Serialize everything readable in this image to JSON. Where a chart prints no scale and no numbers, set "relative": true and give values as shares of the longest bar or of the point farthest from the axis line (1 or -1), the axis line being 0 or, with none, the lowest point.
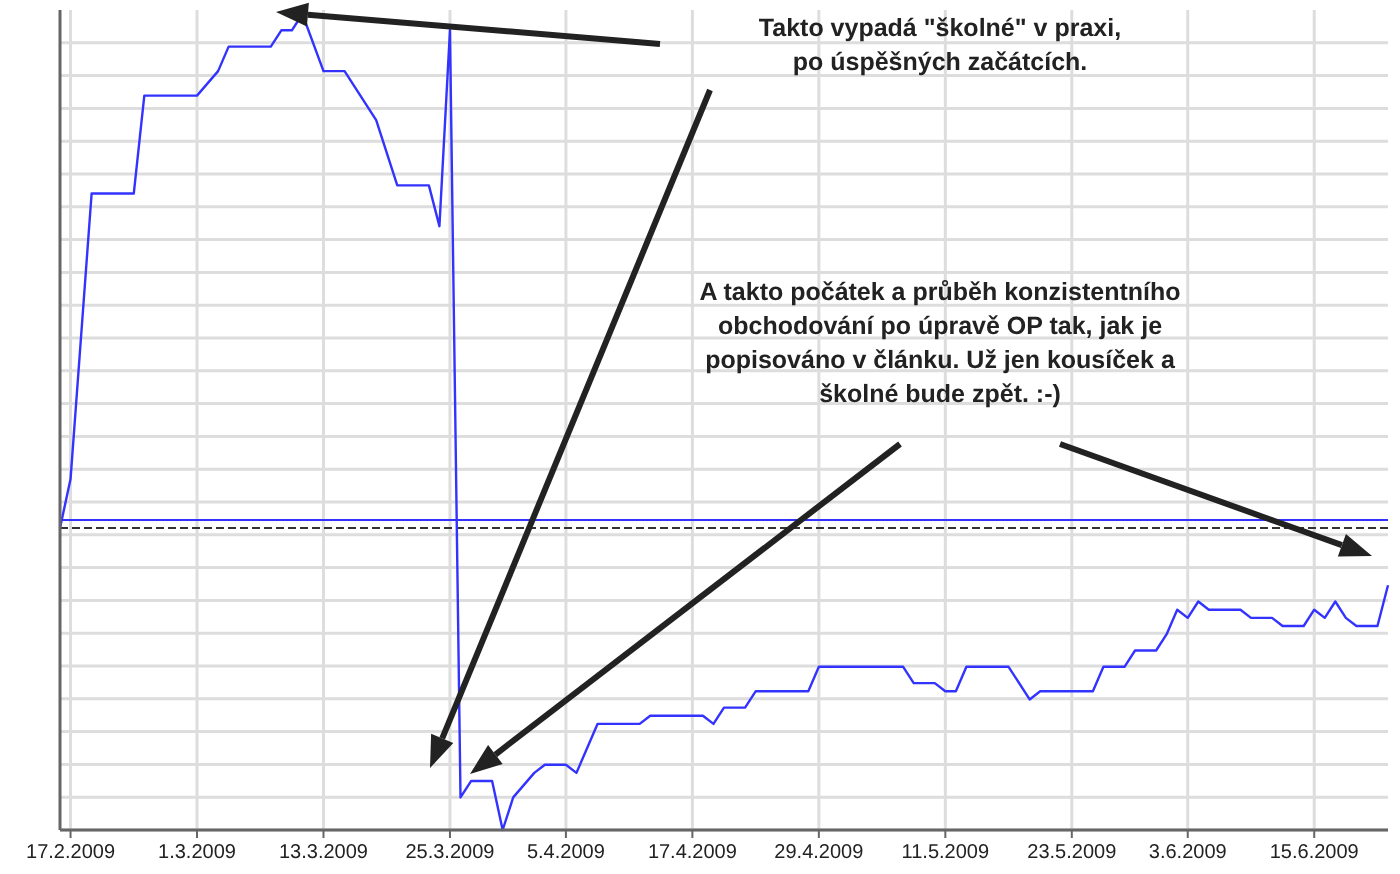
{
  "chart_data": {
    "type": "line",
    "relative": true,
    "grid": true,
    "line_style": "solid",
    "marker": "none",
    "x": [
      "2009-02-16",
      "2009-02-17",
      "2009-02-19",
      "2009-02-23",
      "2009-02-24",
      "2009-02-26",
      "2009-03-01",
      "2009-03-03",
      "2009-03-04",
      "2009-03-05",
      "2009-03-08",
      "2009-03-09",
      "2009-03-10",
      "2009-03-11",
      "2009-03-13",
      "2009-03-15",
      "2009-03-18",
      "2009-03-20",
      "2009-03-22",
      "2009-03-23",
      "2009-03-24",
      "2009-03-25",
      "2009-03-26",
      "2009-03-27",
      "2009-03-29",
      "2009-03-30",
      "2009-03-31",
      "2009-04-02",
      "2009-04-03",
      "2009-04-05",
      "2009-04-06",
      "2009-04-08",
      "2009-04-12",
      "2009-04-13",
      "2009-04-14",
      "2009-04-16",
      "2009-04-18",
      "2009-04-19",
      "2009-04-20",
      "2009-04-22",
      "2009-04-23",
      "2009-04-28",
      "2009-04-29",
      "2009-05-07",
      "2009-05-08",
      "2009-05-10",
      "2009-05-11",
      "2009-05-12",
      "2009-05-13",
      "2009-05-14",
      "2009-05-15",
      "2009-05-17",
      "2009-05-19",
      "2009-05-20",
      "2009-05-21",
      "2009-05-25",
      "2009-05-26",
      "2009-05-28",
      "2009-05-29",
      "2009-05-31",
      "2009-06-01",
      "2009-06-02",
      "2009-06-03",
      "2009-06-04",
      "2009-06-05",
      "2009-06-08",
      "2009-06-09",
      "2009-06-11",
      "2009-06-12",
      "2009-06-14",
      "2009-06-15",
      "2009-06-16",
      "2009-06-17",
      "2009-06-18",
      "2009-06-19",
      "2009-06-21",
      "2009-06-22"
    ],
    "series": [
      {
        "color": "#3333ff",
        "values": [
          0.37,
          0.43,
          0.78,
          0.78,
          0.9,
          0.9,
          0.9,
          0.93,
          0.96,
          0.96,
          0.96,
          0.98,
          0.98,
          1,
          0.93,
          0.93,
          0.87,
          0.79,
          0.79,
          0.79,
          0.74,
          0.98,
          0.04,
          0.06,
          0.06,
          0,
          0.04,
          0.07,
          0.08,
          0.08,
          0.07,
          0.13,
          0.13,
          0.14,
          0.14,
          0.14,
          0.14,
          0.13,
          0.15,
          0.15,
          0.17,
          0.17,
          0.2,
          0.2,
          0.18,
          0.18,
          0.17,
          0.17,
          0.2,
          0.2,
          0.2,
          0.2,
          0.16,
          0.17,
          0.17,
          0.17,
          0.2,
          0.2,
          0.22,
          0.22,
          0.24,
          0.27,
          0.26,
          0.28,
          0.27,
          0.27,
          0.26,
          0.26,
          0.25,
          0.25,
          0.27,
          0.26,
          0.28,
          0.26,
          0.25,
          0.25,
          0.3
        ]
      }
    ],
    "xlim": [
      "2009-02-16",
      "2009-06-22"
    ],
    "xticks": [
      {
        "value": "2009-02-17",
        "label": "17.2.2009"
      },
      {
        "value": "2009-03-01",
        "label": "1.3.2009"
      },
      {
        "value": "2009-03-13",
        "label": "13.3.2009"
      },
      {
        "value": "2009-03-25",
        "label": "25.3.2009"
      },
      {
        "value": "2009-04-05",
        "label": "5.4.2009"
      },
      {
        "value": "2009-04-17",
        "label": "17.4.2009"
      },
      {
        "value": "2009-04-29",
        "label": "29.4.2009"
      },
      {
        "value": "2009-05-11",
        "label": "11.5.2009"
      },
      {
        "value": "2009-05-23",
        "label": "23.5.2009"
      },
      {
        "value": "2009-06-03",
        "label": "3.6.2009"
      },
      {
        "value": "2009-06-15",
        "label": "15.6.2009"
      }
    ],
    "ref_lines": [
      {
        "axis": "y",
        "value": 0.38,
        "color": "#3333ff",
        "line_style": "solid"
      },
      {
        "axis": "y",
        "value": 0.37,
        "color": "#333333",
        "line_style": "dashed"
      }
    ],
    "annotations": [
      "Takto vypadá \"školné\" v praxi,\npo úspěšných začátcích.",
      "A takto počátek a průběh konzistentního\nobchodování po úpravě OP tak, jak je\npopisováno v článku. Už jen kousíček a\nškolné bude zpět. :-)"
    ]
  }
}
